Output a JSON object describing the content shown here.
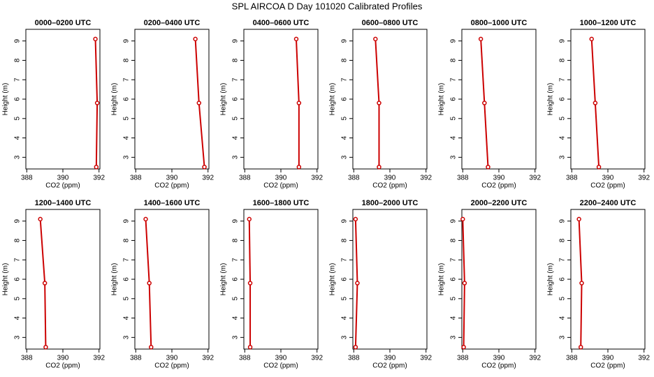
{
  "title": "SPL AIRCOA D  Day 101020  Calibrated Profiles",
  "chart_data": [
    {
      "type": "line",
      "title": "0000–0200 UTC",
      "xlabel": "CO2 (ppm)",
      "ylabel": "Height (m)",
      "xlim": [
        387.95,
        392.05
      ],
      "ylim": [
        2.4,
        9.6
      ],
      "xticks": [
        388,
        390,
        392
      ],
      "yticks": [
        3,
        4,
        5,
        6,
        7,
        8,
        9
      ],
      "series": [
        {
          "color": "#cc0000",
          "x": [
            391.8,
            391.9,
            391.85
          ],
          "values": [
            9.1,
            5.8,
            2.5
          ]
        }
      ]
    },
    {
      "type": "line",
      "title": "0200–0400 UTC",
      "xlabel": "CO2 (ppm)",
      "ylabel": "Height (m)",
      "xlim": [
        387.95,
        392.05
      ],
      "ylim": [
        2.4,
        9.6
      ],
      "xticks": [
        388,
        390,
        392
      ],
      "yticks": [
        3,
        4,
        5,
        6,
        7,
        8,
        9
      ],
      "series": [
        {
          "color": "#cc0000",
          "x": [
            391.3,
            391.5,
            391.8
          ],
          "values": [
            9.1,
            5.8,
            2.5
          ]
        }
      ]
    },
    {
      "type": "line",
      "title": "0400–0600 UTC",
      "xlabel": "CO2 (ppm)",
      "ylabel": "Height (m)",
      "xlim": [
        387.95,
        392.05
      ],
      "ylim": [
        2.4,
        9.6
      ],
      "xticks": [
        388,
        390,
        392
      ],
      "yticks": [
        3,
        4,
        5,
        6,
        7,
        8,
        9
      ],
      "series": [
        {
          "color": "#cc0000",
          "x": [
            390.85,
            391.0,
            391.0
          ],
          "values": [
            9.1,
            5.8,
            2.5
          ]
        }
      ]
    },
    {
      "type": "line",
      "title": "0600–0800 UTC",
      "xlabel": "CO2 (ppm)",
      "ylabel": "Height (m)",
      "xlim": [
        387.95,
        392.05
      ],
      "ylim": [
        2.4,
        9.6
      ],
      "xticks": [
        388,
        390,
        392
      ],
      "yticks": [
        3,
        4,
        5,
        6,
        7,
        8,
        9
      ],
      "series": [
        {
          "color": "#cc0000",
          "x": [
            389.2,
            389.4,
            389.4
          ],
          "values": [
            9.1,
            5.8,
            2.5
          ]
        }
      ]
    },
    {
      "type": "line",
      "title": "0800–1000 UTC",
      "xlabel": "CO2 (ppm)",
      "ylabel": "Height (m)",
      "xlim": [
        387.95,
        392.05
      ],
      "ylim": [
        2.4,
        9.6
      ],
      "xticks": [
        388,
        390,
        392
      ],
      "yticks": [
        3,
        4,
        5,
        6,
        7,
        8,
        9
      ],
      "series": [
        {
          "color": "#cc0000",
          "x": [
            389.0,
            389.2,
            389.4
          ],
          "values": [
            9.1,
            5.8,
            2.5
          ]
        }
      ]
    },
    {
      "type": "line",
      "title": "1000–1200 UTC",
      "xlabel": "CO2 (ppm)",
      "ylabel": "Height (m)",
      "xlim": [
        387.95,
        392.05
      ],
      "ylim": [
        2.4,
        9.6
      ],
      "xticks": [
        388,
        390,
        392
      ],
      "yticks": [
        3,
        4,
        5,
        6,
        7,
        8,
        9
      ],
      "series": [
        {
          "color": "#cc0000",
          "x": [
            389.1,
            389.3,
            389.5
          ],
          "values": [
            9.1,
            5.8,
            2.5
          ]
        }
      ]
    },
    {
      "type": "line",
      "title": "1200–1400 UTC",
      "xlabel": "CO2 (ppm)",
      "ylabel": "Height (m)",
      "xlim": [
        387.95,
        392.05
      ],
      "ylim": [
        2.4,
        9.6
      ],
      "xticks": [
        388,
        390,
        392
      ],
      "yticks": [
        3,
        4,
        5,
        6,
        7,
        8,
        9
      ],
      "series": [
        {
          "color": "#cc0000",
          "x": [
            388.75,
            389.0,
            389.05
          ],
          "values": [
            9.1,
            5.8,
            2.5
          ]
        }
      ]
    },
    {
      "type": "line",
      "title": "1400–1600 UTC",
      "xlabel": "CO2 (ppm)",
      "ylabel": "Height (m)",
      "xlim": [
        387.95,
        392.05
      ],
      "ylim": [
        2.4,
        9.6
      ],
      "xticks": [
        388,
        390,
        392
      ],
      "yticks": [
        3,
        4,
        5,
        6,
        7,
        8,
        9
      ],
      "series": [
        {
          "color": "#cc0000",
          "x": [
            388.55,
            388.75,
            388.85
          ],
          "values": [
            9.1,
            5.8,
            2.5
          ]
        }
      ]
    },
    {
      "type": "line",
      "title": "1600–1800 UTC",
      "xlabel": "CO2 (ppm)",
      "ylabel": "Height (m)",
      "xlim": [
        387.95,
        392.05
      ],
      "ylim": [
        2.4,
        9.6
      ],
      "xticks": [
        388,
        390,
        392
      ],
      "yticks": [
        3,
        4,
        5,
        6,
        7,
        8,
        9
      ],
      "series": [
        {
          "color": "#cc0000",
          "x": [
            388.25,
            388.3,
            388.3
          ],
          "values": [
            9.1,
            5.8,
            2.5
          ]
        }
      ]
    },
    {
      "type": "line",
      "title": "1800–2000 UTC",
      "xlabel": "CO2 (ppm)",
      "ylabel": "Height (m)",
      "xlim": [
        387.95,
        392.05
      ],
      "ylim": [
        2.4,
        9.6
      ],
      "xticks": [
        388,
        390,
        392
      ],
      "yticks": [
        3,
        4,
        5,
        6,
        7,
        8,
        9
      ],
      "series": [
        {
          "color": "#cc0000",
          "x": [
            388.1,
            388.2,
            388.1
          ],
          "values": [
            9.1,
            5.8,
            2.5
          ]
        }
      ]
    },
    {
      "type": "line",
      "title": "2000–2200 UTC",
      "xlabel": "CO2 (ppm)",
      "ylabel": "Height (m)",
      "xlim": [
        387.95,
        392.05
      ],
      "ylim": [
        2.4,
        9.6
      ],
      "xticks": [
        388,
        390,
        392
      ],
      "yticks": [
        3,
        4,
        5,
        6,
        7,
        8,
        9
      ],
      "series": [
        {
          "color": "#cc0000",
          "x": [
            388.0,
            388.1,
            388.05
          ],
          "values": [
            9.1,
            5.8,
            2.5
          ]
        }
      ]
    },
    {
      "type": "line",
      "title": "2200–2400 UTC",
      "xlabel": "CO2 (ppm)",
      "ylabel": "Height (m)",
      "xlim": [
        387.95,
        392.05
      ],
      "ylim": [
        2.4,
        9.6
      ],
      "xticks": [
        388,
        390,
        392
      ],
      "yticks": [
        3,
        4,
        5,
        6,
        7,
        8,
        9
      ],
      "series": [
        {
          "color": "#cc0000",
          "x": [
            388.4,
            388.55,
            388.5
          ],
          "values": [
            9.1,
            5.8,
            2.5
          ]
        }
      ]
    }
  ]
}
